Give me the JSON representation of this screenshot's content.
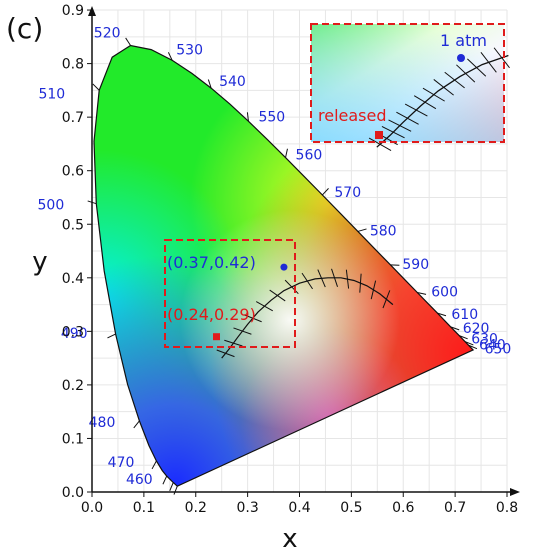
{
  "panel_label": "(c)",
  "chart_data": {
    "type": "scatter",
    "title": "",
    "xlabel": "x",
    "ylabel": "y",
    "xlim": [
      0.0,
      0.8
    ],
    "ylim": [
      0.0,
      0.9
    ],
    "xticks": [
      "0.0",
      "0.1",
      "0.2",
      "0.3",
      "0.4",
      "0.5",
      "0.6",
      "0.7",
      "0.8"
    ],
    "yticks": [
      "0.0",
      "0.1",
      "0.2",
      "0.3",
      "0.4",
      "0.5",
      "0.6",
      "0.7",
      "0.8",
      "0.9"
    ],
    "grid": true,
    "wavelength_labels": [
      "460",
      "470",
      "480",
      "490",
      "500",
      "510",
      "520",
      "530",
      "540",
      "550",
      "560",
      "570",
      "580",
      "590",
      "600",
      "610",
      "620",
      "630",
      "640",
      "650"
    ],
    "points": [
      {
        "label": "(0.37,0.42)",
        "x": 0.37,
        "y": 0.42,
        "color": "#1f2bd6"
      },
      {
        "label": "(0.24,0.29)",
        "x": 0.24,
        "y": 0.29,
        "color": "#e01b1b"
      }
    ],
    "zoom_inset": {
      "x_range": [
        0.18,
        0.4
      ],
      "y_range": [
        0.27,
        0.45
      ],
      "point_labels": [
        "1 atm",
        "released"
      ]
    },
    "colors": {
      "blue": "#1f2bd6",
      "red": "#e01b1b",
      "box": "#e01b1b"
    }
  }
}
